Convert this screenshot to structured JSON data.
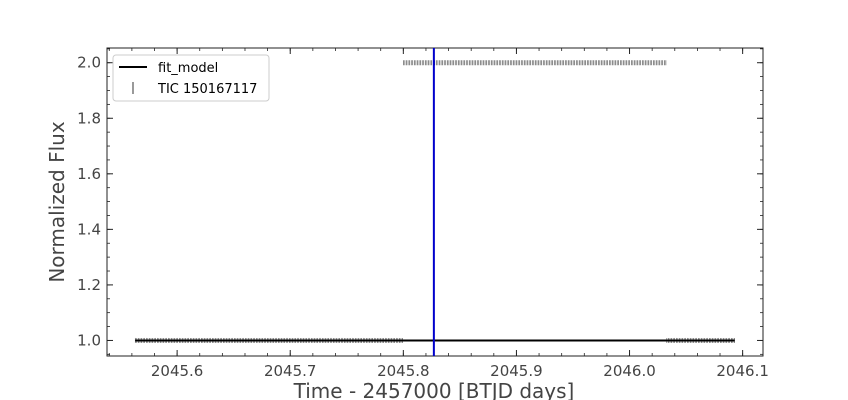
{
  "chart_data": {
    "type": "scatter",
    "xlabel": "Time - 2457000 [BTJD days]",
    "ylabel": "Normalized Flux",
    "xlim": [
      2045.538,
      2046.118
    ],
    "ylim": [
      0.944,
      2.053
    ],
    "x_ticks": [
      2045.6,
      2045.7,
      2045.8,
      2045.9,
      2046.0,
      2046.1
    ],
    "x_tick_labels": [
      "2045.6",
      "2045.7",
      "2045.8",
      "2045.9",
      "2046.0",
      "2046.1"
    ],
    "y_ticks": [
      1.0,
      1.2,
      1.4,
      1.6,
      1.8,
      2.0
    ],
    "y_tick_labels": [
      "1.0",
      "1.2",
      "1.4",
      "1.6",
      "1.8",
      "2.0"
    ],
    "grid": false,
    "legend_position": "top-left",
    "series": [
      {
        "name": "fit_model",
        "kind": "line",
        "color": "#000000",
        "x": [
          2045.563,
          2046.093
        ],
        "y": [
          1.0,
          1.0
        ]
      },
      {
        "name": "TIC 150167117",
        "kind": "errorbar-points",
        "color": "#000000",
        "segments": [
          {
            "x_start": 2045.563,
            "x_end": 2045.8,
            "y": 1.0
          },
          {
            "x_start": 2045.8,
            "x_end": 2046.033,
            "y": 2.0
          },
          {
            "x_start": 2046.033,
            "x_end": 2046.093,
            "y": 1.0
          }
        ]
      }
    ],
    "vertical_line": {
      "x": 2045.827,
      "color": "#0000cc"
    }
  }
}
